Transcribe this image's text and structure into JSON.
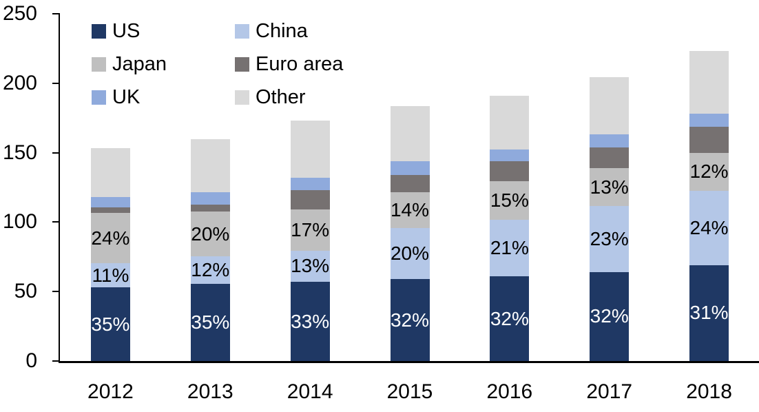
{
  "chart_data": {
    "type": "bar",
    "stacked": true,
    "title": "",
    "xlabel": "",
    "ylabel": "",
    "categories": [
      "2012",
      "2013",
      "2014",
      "2015",
      "2016",
      "2017",
      "2018"
    ],
    "series": [
      {
        "name": "US",
        "color": "#1F3864",
        "values": [
          53,
          55.5,
          57,
          59,
          61,
          64,
          69
        ],
        "labels": [
          "35%",
          "35%",
          "33%",
          "32%",
          "32%",
          "32%",
          "31%"
        ],
        "label_color": "#FFFFFF"
      },
      {
        "name": "China",
        "color": "#B4C7E7",
        "values": [
          17.5,
          20,
          22.5,
          36.5,
          40.5,
          47.5,
          53.5
        ],
        "labels": [
          "11%",
          "12%",
          "13%",
          "20%",
          "21%",
          "23%",
          "24%"
        ],
        "label_color": "#000000"
      },
      {
        "name": "Japan",
        "color": "#BFBFBF",
        "values": [
          36,
          32,
          29.5,
          26,
          28,
          27.5,
          27.5
        ],
        "labels": [
          "24%",
          "20%",
          "17%",
          "14%",
          "15%",
          "13%",
          "12%"
        ],
        "label_color": "#000000"
      },
      {
        "name": "Euro area",
        "color": "#767171",
        "values": [
          4,
          5,
          14,
          12.5,
          14.5,
          15,
          18.5
        ]
      },
      {
        "name": "UK",
        "color": "#8FAADC",
        "values": [
          7.5,
          9,
          9,
          10,
          8.5,
          9,
          9.5
        ]
      },
      {
        "name": "Other",
        "color": "#D9D9D9",
        "values": [
          35.5,
          38,
          41,
          39.5,
          38.5,
          41.5,
          45
        ]
      }
    ],
    "ylim": [
      0,
      250
    ],
    "yticks": [
      0,
      50,
      100,
      150,
      200,
      250
    ],
    "axis_color": "#000000",
    "grid": false,
    "legend_position": "top-left",
    "legend_columns": 2,
    "legend_order_visual": [
      [
        "US",
        "China"
      ],
      [
        "Japan",
        "Euro area"
      ],
      [
        "UK",
        "Other"
      ]
    ]
  }
}
